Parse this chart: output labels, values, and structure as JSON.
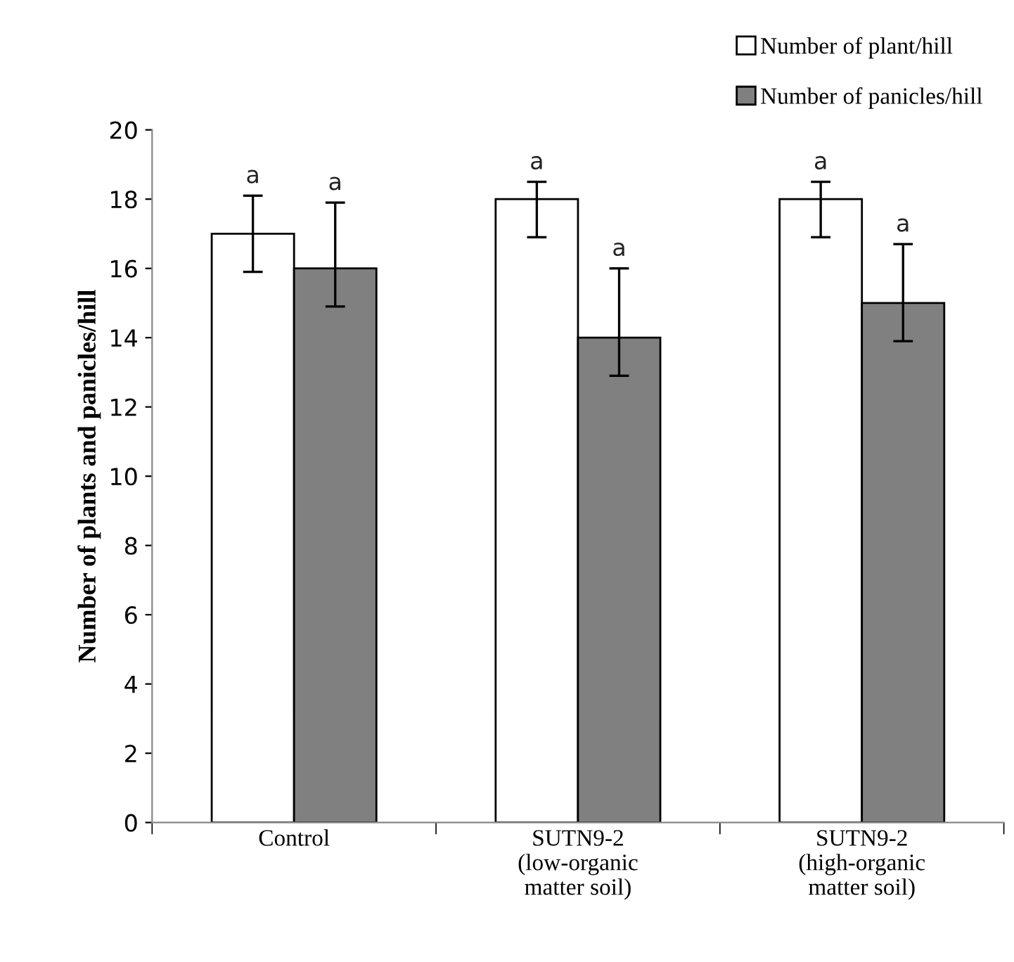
{
  "chart_data": {
    "type": "bar",
    "ylabel": "Number of plants and panicles/hill",
    "categories": [
      "Control",
      "SUTN9-2\n(low-organic\nmatter soil)",
      "SUTN9-2\n(high-organic\nmatter soil)"
    ],
    "series": [
      {
        "name": "Number of plant/hill",
        "color": "#ffffff",
        "values": [
          17,
          18,
          18
        ],
        "errors": [
          [
            15.9,
            18.1
          ],
          [
            16.9,
            18.5
          ],
          [
            16.9,
            18.5
          ]
        ]
      },
      {
        "name": "Number of panicles/hill",
        "color": "#808080",
        "values": [
          16,
          14,
          15
        ],
        "errors": [
          [
            14.9,
            17.9
          ],
          [
            12.9,
            16.0
          ],
          [
            13.9,
            16.7
          ]
        ]
      }
    ],
    "annotations": [
      "a",
      "a",
      "a",
      "a",
      "a",
      "a"
    ],
    "ylim": [
      0,
      20
    ],
    "yticks": [
      0,
      2,
      4,
      6,
      8,
      10,
      12,
      14,
      16,
      18,
      20
    ],
    "grid": false,
    "legend": "top right"
  }
}
